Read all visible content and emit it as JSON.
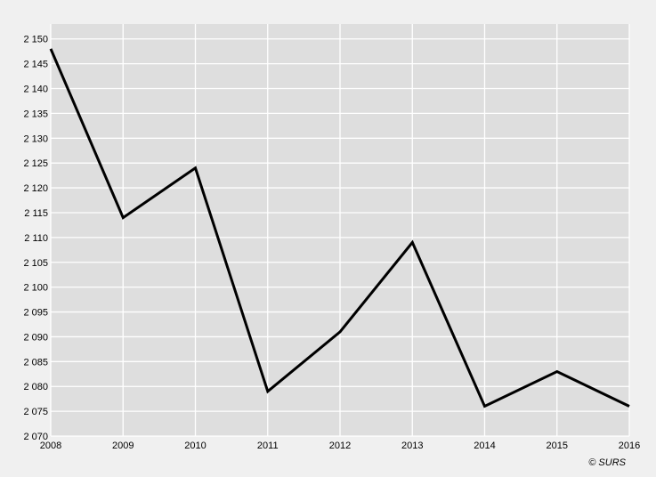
{
  "chart_data": {
    "type": "line",
    "title": "",
    "xlabel": "",
    "ylabel": "",
    "x": [
      "2008",
      "2009",
      "2010",
      "2011",
      "2012",
      "2013",
      "2014",
      "2015",
      "2016"
    ],
    "series": [
      {
        "values": [
          2148,
          2114,
          2124,
          2079,
          2091,
          2109,
          2076,
          2083,
          2076
        ]
      }
    ],
    "ylim": [
      2070,
      2153
    ],
    "y_ticks": [
      2070,
      2075,
      2080,
      2085,
      2090,
      2095,
      2100,
      2105,
      2110,
      2115,
      2120,
      2125,
      2130,
      2135,
      2140,
      2145,
      2150
    ],
    "y_tick_labels": [
      "2 070",
      "2 075",
      "2 080",
      "2 085",
      "2 090",
      "2 095",
      "2 100",
      "2 105",
      "2 110",
      "2 115",
      "2 120",
      "2 125",
      "2 130",
      "2 135",
      "2 140",
      "2 145",
      "2 150"
    ],
    "grid": true,
    "legend": "none",
    "colors": {
      "plot_background": "#dedede",
      "page_background": "#f0f0f0",
      "grid": "#ffffff",
      "line": "#000000"
    }
  },
  "credit": "© SURS"
}
